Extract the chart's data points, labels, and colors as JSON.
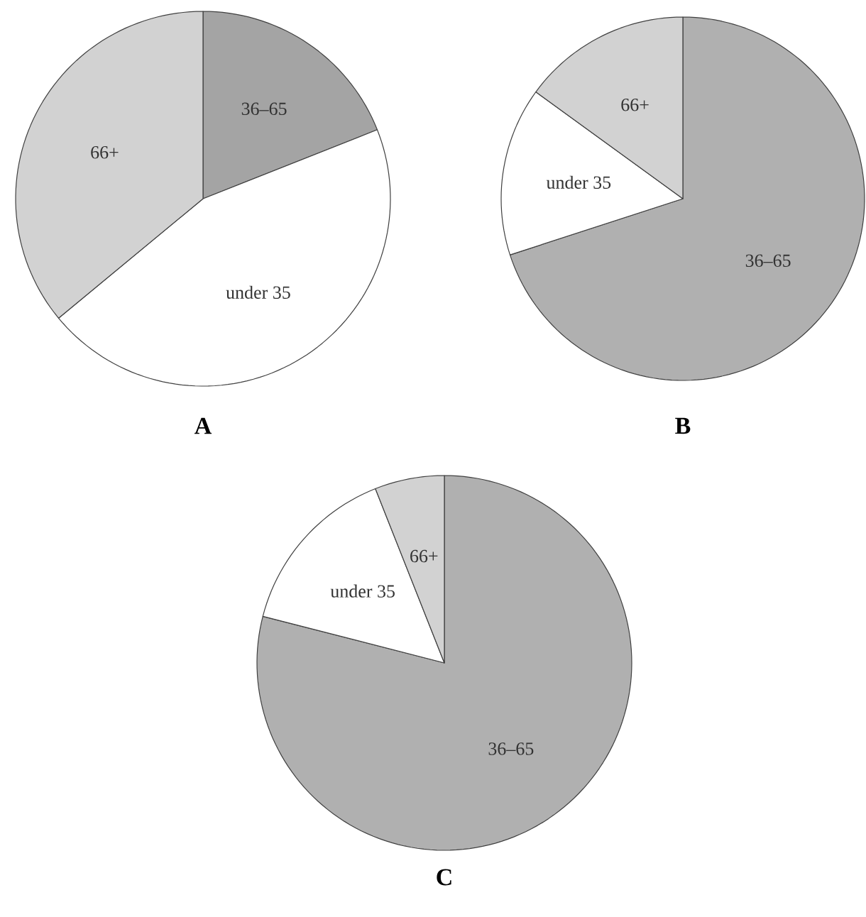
{
  "chart_data": [
    {
      "type": "pie",
      "title": "A",
      "categories": [
        "36–65",
        "under 35",
        "66+"
      ],
      "values": [
        19,
        45,
        36
      ],
      "colors": [
        "#a4a4a4",
        "#ffffff",
        "#d2d2d2"
      ]
    },
    {
      "type": "pie",
      "title": "B",
      "categories": [
        "36–65",
        "under 35",
        "66+"
      ],
      "values": [
        70,
        15,
        15
      ],
      "colors": [
        "#b0b0b0",
        "#ffffff",
        "#d2d2d2"
      ]
    },
    {
      "type": "pie",
      "title": "C",
      "categories": [
        "36–65",
        "under 35",
        "66+"
      ],
      "values": [
        79,
        15,
        6
      ],
      "colors": [
        "#b0b0b0",
        "#ffffff",
        "#d2d2d2"
      ]
    }
  ]
}
